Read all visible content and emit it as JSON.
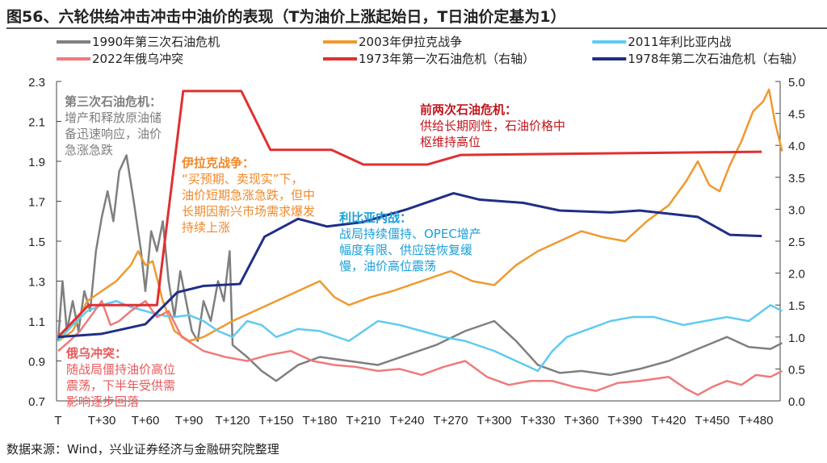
{
  "title": "图56、六轮供给冲击冲击中油价的表现（T为油价上涨起始日，T日油价定基为1）",
  "source": "数据来源：Wind，兴业证券经济与金融研究院整理",
  "annotations": [
    {
      "id": "gray",
      "color": "#7f7f7f",
      "head": "第三次石油危机：",
      "body": [
        "增产和释放原油储",
        "备迅速响应，油价",
        "急涨急跌"
      ]
    },
    {
      "id": "orange",
      "color": "#f0892a",
      "head": "伊拉克战争：",
      "body": [
        "“买预期、卖现实”下，",
        "油价短期急涨急跌，但中",
        "长期因新兴市场需求爆发",
        "持续上涨"
      ]
    },
    {
      "id": "cyan",
      "color": "#1a9fd9",
      "head": "利比亚内战：",
      "body": [
        "战局持续僵持、OPEC增产",
        "幅度有限、供应链恢复缓",
        "慢，油价高位震荡"
      ]
    },
    {
      "id": "red",
      "color": "#c0161d",
      "head": "前两次石油危机：",
      "body": [
        "供给长期刚性，石油价格中",
        "枢维持高位"
      ]
    },
    {
      "id": "pink",
      "color": "#e8595b",
      "head": "俄乌冲突：",
      "body": [
        "随战局僵持油价高位",
        "震荡，下半年受供需",
        "影响逐步回落"
      ]
    }
  ],
  "chart_data": {
    "type": "line",
    "title": "图56、六轮供给冲击冲击中油价的表现（T为油价上涨起始日，T日油价定基为1）",
    "xlabel": "",
    "ylabel": "",
    "y2label": "",
    "x_unit": "trading days after T",
    "xticks": [
      "T",
      "T+30",
      "T+60",
      "T+90",
      "T+120",
      "T+150",
      "T+180",
      "T+210",
      "T+240",
      "T+270",
      "T+300",
      "T+330",
      "T+360",
      "T+390",
      "T+420",
      "T+450",
      "T+480"
    ],
    "ylim": [
      0.7,
      2.3
    ],
    "yticks": [
      "0.7",
      "0.9",
      "1.1",
      "1.3",
      "1.5",
      "1.7",
      "1.9",
      "2.1",
      "2.3"
    ],
    "y2lim": [
      0.0,
      5.0
    ],
    "y2ticks": [
      "0.0",
      "0.5",
      "1.0",
      "1.5",
      "2.0",
      "2.5",
      "3.0",
      "3.5",
      "4.0",
      "4.5",
      "5.0"
    ],
    "grid": false,
    "legend_placement": "top",
    "series": [
      {
        "name": "1990年第三次石油危机",
        "color": "#7f7f7f",
        "axis": "left",
        "points": [
          [
            0,
            1.0
          ],
          [
            3,
            1.3
          ],
          [
            6,
            1.05
          ],
          [
            10,
            1.2
          ],
          [
            14,
            1.05
          ],
          [
            18,
            1.25
          ],
          [
            22,
            1.15
          ],
          [
            26,
            1.45
          ],
          [
            30,
            1.62
          ],
          [
            34,
            1.75
          ],
          [
            38,
            1.6
          ],
          [
            42,
            1.85
          ],
          [
            47,
            1.93
          ],
          [
            52,
            1.7
          ],
          [
            57,
            1.45
          ],
          [
            60,
            1.25
          ],
          [
            64,
            1.55
          ],
          [
            68,
            1.45
          ],
          [
            72,
            1.6
          ],
          [
            76,
            1.3
          ],
          [
            80,
            1.12
          ],
          [
            84,
            1.35
          ],
          [
            88,
            1.2
          ],
          [
            92,
            1.05
          ],
          [
            96,
            1.0
          ],
          [
            100,
            1.2
          ],
          [
            105,
            1.1
          ],
          [
            110,
            1.3
          ],
          [
            114,
            1.2
          ],
          [
            118,
            1.45
          ],
          [
            120,
            0.98
          ],
          [
            130,
            0.92
          ],
          [
            140,
            0.85
          ],
          [
            150,
            0.8
          ],
          [
            165,
            0.88
          ],
          [
            180,
            0.92
          ],
          [
            200,
            0.9
          ],
          [
            220,
            0.88
          ],
          [
            240,
            0.93
          ],
          [
            260,
            0.98
          ],
          [
            280,
            1.05
          ],
          [
            300,
            1.1
          ],
          [
            315,
            1.0
          ],
          [
            330,
            0.88
          ],
          [
            345,
            0.84
          ],
          [
            360,
            0.85
          ],
          [
            380,
            0.83
          ],
          [
            400,
            0.86
          ],
          [
            420,
            0.9
          ],
          [
            440,
            0.96
          ],
          [
            460,
            1.02
          ],
          [
            475,
            0.97
          ],
          [
            490,
            0.96
          ],
          [
            498,
            0.99
          ]
        ]
      },
      {
        "name": "2003年伊拉克战争",
        "color": "#f0992f",
        "axis": "left",
        "points": [
          [
            0,
            1.0
          ],
          [
            10,
            1.05
          ],
          [
            20,
            1.2
          ],
          [
            30,
            1.25
          ],
          [
            40,
            1.3
          ],
          [
            50,
            1.38
          ],
          [
            55,
            1.45
          ],
          [
            60,
            1.38
          ],
          [
            65,
            1.4
          ],
          [
            72,
            1.2
          ],
          [
            80,
            1.05
          ],
          [
            90,
            1.0
          ],
          [
            100,
            1.02
          ],
          [
            120,
            1.1
          ],
          [
            135,
            1.15
          ],
          [
            150,
            1.2
          ],
          [
            165,
            1.25
          ],
          [
            180,
            1.3
          ],
          [
            190,
            1.22
          ],
          [
            200,
            1.18
          ],
          [
            215,
            1.22
          ],
          [
            230,
            1.25
          ],
          [
            250,
            1.3
          ],
          [
            270,
            1.35
          ],
          [
            285,
            1.3
          ],
          [
            300,
            1.28
          ],
          [
            315,
            1.38
          ],
          [
            330,
            1.45
          ],
          [
            345,
            1.5
          ],
          [
            360,
            1.55
          ],
          [
            375,
            1.52
          ],
          [
            390,
            1.5
          ],
          [
            405,
            1.6
          ],
          [
            420,
            1.68
          ],
          [
            432,
            1.8
          ],
          [
            440,
            1.9
          ],
          [
            448,
            1.78
          ],
          [
            455,
            1.75
          ],
          [
            462,
            1.88
          ],
          [
            470,
            2.0
          ],
          [
            478,
            2.15
          ],
          [
            485,
            2.2
          ],
          [
            489,
            2.26
          ],
          [
            493,
            2.1
          ],
          [
            498,
            1.95
          ]
        ]
      },
      {
        "name": "2011年利比亚内战",
        "color": "#5ecbf0",
        "axis": "left",
        "points": [
          [
            0,
            1.0
          ],
          [
            10,
            1.08
          ],
          [
            20,
            1.15
          ],
          [
            30,
            1.18
          ],
          [
            40,
            1.2
          ],
          [
            50,
            1.17
          ],
          [
            60,
            1.15
          ],
          [
            70,
            1.13
          ],
          [
            80,
            1.12
          ],
          [
            90,
            1.13
          ],
          [
            100,
            1.1
          ],
          [
            110,
            1.05
          ],
          [
            120,
            1.02
          ],
          [
            130,
            1.1
          ],
          [
            140,
            1.08
          ],
          [
            150,
            1.02
          ],
          [
            165,
            1.06
          ],
          [
            180,
            1.05
          ],
          [
            200,
            1.0
          ],
          [
            210,
            1.05
          ],
          [
            220,
            1.1
          ],
          [
            235,
            1.08
          ],
          [
            250,
            1.05
          ],
          [
            265,
            1.02
          ],
          [
            280,
            1.0
          ],
          [
            300,
            0.95
          ],
          [
            315,
            0.9
          ],
          [
            330,
            0.85
          ],
          [
            340,
            0.95
          ],
          [
            350,
            1.02
          ],
          [
            365,
            1.06
          ],
          [
            380,
            1.1
          ],
          [
            395,
            1.12
          ],
          [
            410,
            1.12
          ],
          [
            430,
            1.08
          ],
          [
            445,
            1.1
          ],
          [
            460,
            1.12
          ],
          [
            475,
            1.1
          ],
          [
            490,
            1.18
          ],
          [
            498,
            1.15
          ]
        ]
      },
      {
        "name": "2022年俄乌冲突",
        "color": "#ee7b7b",
        "axis": "left",
        "points": [
          [
            0,
            0.95
          ],
          [
            8,
            1.0
          ],
          [
            15,
            1.05
          ],
          [
            22,
            1.12
          ],
          [
            30,
            1.2
          ],
          [
            36,
            1.08
          ],
          [
            42,
            1.1
          ],
          [
            50,
            1.15
          ],
          [
            60,
            1.2
          ],
          [
            68,
            1.12
          ],
          [
            76,
            1.15
          ],
          [
            85,
            1.02
          ],
          [
            100,
            0.95
          ],
          [
            115,
            0.92
          ],
          [
            130,
            0.9
          ],
          [
            145,
            0.93
          ],
          [
            160,
            0.95
          ],
          [
            175,
            0.9
          ],
          [
            190,
            0.88
          ],
          [
            205,
            0.87
          ],
          [
            220,
            0.85
          ],
          [
            235,
            0.86
          ],
          [
            250,
            0.83
          ],
          [
            265,
            0.87
          ],
          [
            280,
            0.9
          ],
          [
            295,
            0.82
          ],
          [
            310,
            0.78
          ],
          [
            325,
            0.8
          ],
          [
            340,
            0.8
          ],
          [
            355,
            0.77
          ],
          [
            370,
            0.75
          ],
          [
            385,
            0.79
          ],
          [
            400,
            0.8
          ],
          [
            420,
            0.82
          ],
          [
            432,
            0.76
          ],
          [
            440,
            0.73
          ],
          [
            450,
            0.77
          ],
          [
            460,
            0.8
          ],
          [
            470,
            0.78
          ],
          [
            480,
            0.83
          ],
          [
            490,
            0.82
          ],
          [
            498,
            0.85
          ]
        ]
      },
      {
        "name": "1973年第一次石油危机（右轴）",
        "color": "#e03030",
        "axis": "right",
        "points": [
          [
            0,
            1.0
          ],
          [
            21,
            1.5
          ],
          [
            68,
            1.5
          ],
          [
            86,
            4.85
          ],
          [
            126,
            4.85
          ],
          [
            146,
            3.93
          ],
          [
            188,
            3.93
          ],
          [
            210,
            3.7
          ],
          [
            254,
            3.7
          ],
          [
            277,
            3.85
          ],
          [
            484,
            3.9
          ]
        ]
      },
      {
        "name": "1978年第二次石油危机（右轴）",
        "color": "#1f2f86",
        "axis": "right",
        "points": [
          [
            0,
            1.0
          ],
          [
            30,
            1.05
          ],
          [
            60,
            1.2
          ],
          [
            82,
            1.7
          ],
          [
            100,
            1.8
          ],
          [
            125,
            1.83
          ],
          [
            142,
            2.57
          ],
          [
            165,
            2.85
          ],
          [
            185,
            2.73
          ],
          [
            210,
            2.8
          ],
          [
            240,
            3.0
          ],
          [
            272,
            3.25
          ],
          [
            290,
            3.15
          ],
          [
            320,
            3.1
          ],
          [
            345,
            2.98
          ],
          [
            380,
            2.95
          ],
          [
            400,
            2.98
          ],
          [
            440,
            2.88
          ],
          [
            462,
            2.6
          ],
          [
            484,
            2.58
          ]
        ]
      }
    ]
  }
}
